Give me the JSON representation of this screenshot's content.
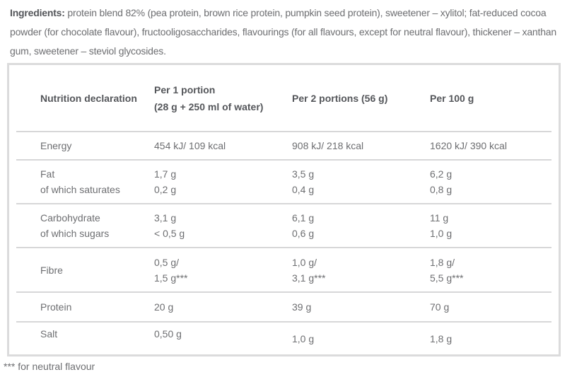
{
  "ingredients": {
    "label": "Ingredients:",
    "text": "protein blend 82% (pea protein, brown rice protein, pumpkin seed protein), sweetener – xylitol; fat-reduced cocoa powder (for chocolate flavour), fructooligosaccharides, flavourings (for all flavours, except for neutral flavour), thickener – xanthan gum, sweetener – steviol glycosides."
  },
  "table": {
    "headers": [
      {
        "lines": [
          "Nutrition declaration"
        ]
      },
      {
        "lines": [
          "Per 1 portion",
          "(28 g + 250 ml of water)"
        ]
      },
      {
        "lines": [
          "Per 2 portions (56 g)"
        ]
      },
      {
        "lines": [
          "Per 100 g"
        ]
      }
    ],
    "rows": [
      {
        "label": [
          "Energy"
        ],
        "per1": [
          "454 kJ/ 109 kcal"
        ],
        "per2": [
          "908 kJ/ 218 kcal"
        ],
        "per100": [
          "1620 kJ/ 390 kcal"
        ]
      },
      {
        "label": [
          "Fat",
          "of which saturates"
        ],
        "per1": [
          "1,7 g",
          "0,2 g"
        ],
        "per2": [
          "3,5 g",
          "0,4 g"
        ],
        "per100": [
          "6,2 g",
          "0,8 g"
        ]
      },
      {
        "label": [
          "Carbohydrate",
          "of which sugars"
        ],
        "per1": [
          "3,1 g",
          "< 0,5 g"
        ],
        "per2": [
          "6,1 g",
          "0,6 g"
        ],
        "per100": [
          "11 g",
          "1,0 g"
        ]
      },
      {
        "label": [
          "Fibre"
        ],
        "per1": [
          "0,5 g/",
          "1,5 g***"
        ],
        "per2": [
          "1,0 g/",
          "3,1 g***"
        ],
        "per100": [
          "1,8 g/",
          "5,5 g***"
        ]
      },
      {
        "label": [
          "Protein"
        ],
        "per1": [
          "20 g"
        ],
        "per2": [
          "39 g"
        ],
        "per100": [
          "70 g"
        ]
      },
      {
        "label": [
          "Salt"
        ],
        "per1": [
          "0,50 g"
        ],
        "per2": [
          "1,0 g"
        ],
        "per100": [
          "1,8 g"
        ]
      }
    ]
  },
  "footnote": "*** for neutral flavour",
  "colors": {
    "text": "#6d6e71",
    "heading": "#54565a",
    "table_border": "#dbdbdc",
    "row_divider": "#d7d7d8",
    "background": "#ffffff"
  }
}
